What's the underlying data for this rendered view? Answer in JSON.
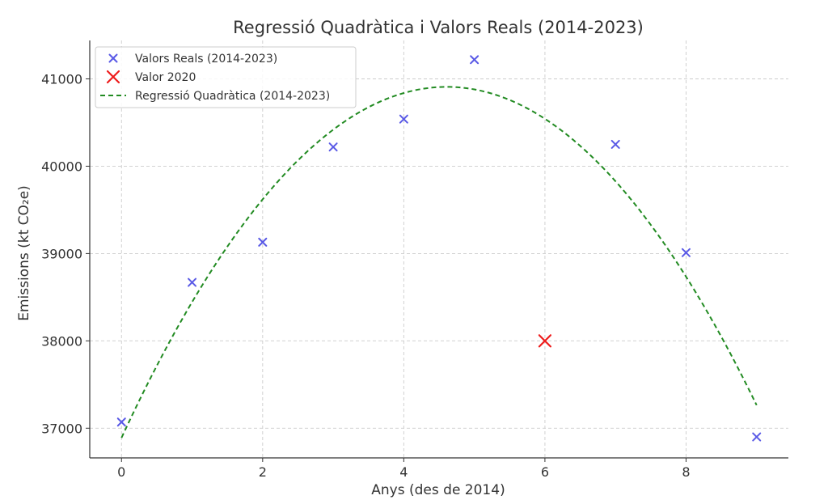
{
  "chart_data": {
    "type": "scatter",
    "title": "Regressió Quadràtica i Valors Reals (2014-2023)",
    "xlabel": "Anys (des de 2014)",
    "ylabel": "Emissions (kt CO₂e)",
    "xlim": [
      -0.45,
      9.45
    ],
    "ylim": [
      36660,
      41440
    ],
    "x_ticks": [
      0,
      2,
      4,
      6,
      8
    ],
    "y_ticks": [
      37000,
      38000,
      39000,
      40000,
      41000
    ],
    "grid": true,
    "legend_position": "top-left",
    "series": [
      {
        "name": "Valors Reals (2014-2023)",
        "kind": "scatter",
        "marker": "x",
        "color": "#5a5ae6",
        "x": [
          0,
          1,
          2,
          3,
          4,
          5,
          7,
          8,
          9
        ],
        "y": [
          37070,
          38670,
          39130,
          40220,
          40540,
          41220,
          40250,
          39010,
          36900
        ]
      },
      {
        "name": "Valor 2020",
        "kind": "scatter",
        "marker": "x",
        "color": "#ee1c1c",
        "x": [
          6
        ],
        "y": [
          38000
        ]
      },
      {
        "name": "Regressió Quadràtica (2014-2023)",
        "kind": "line",
        "style": "dashed",
        "color": "#228b22",
        "coefficients": {
          "a": -189.1,
          "b": 1743.4,
          "c": 36890
        },
        "x_range": [
          0,
          9
        ]
      }
    ]
  }
}
